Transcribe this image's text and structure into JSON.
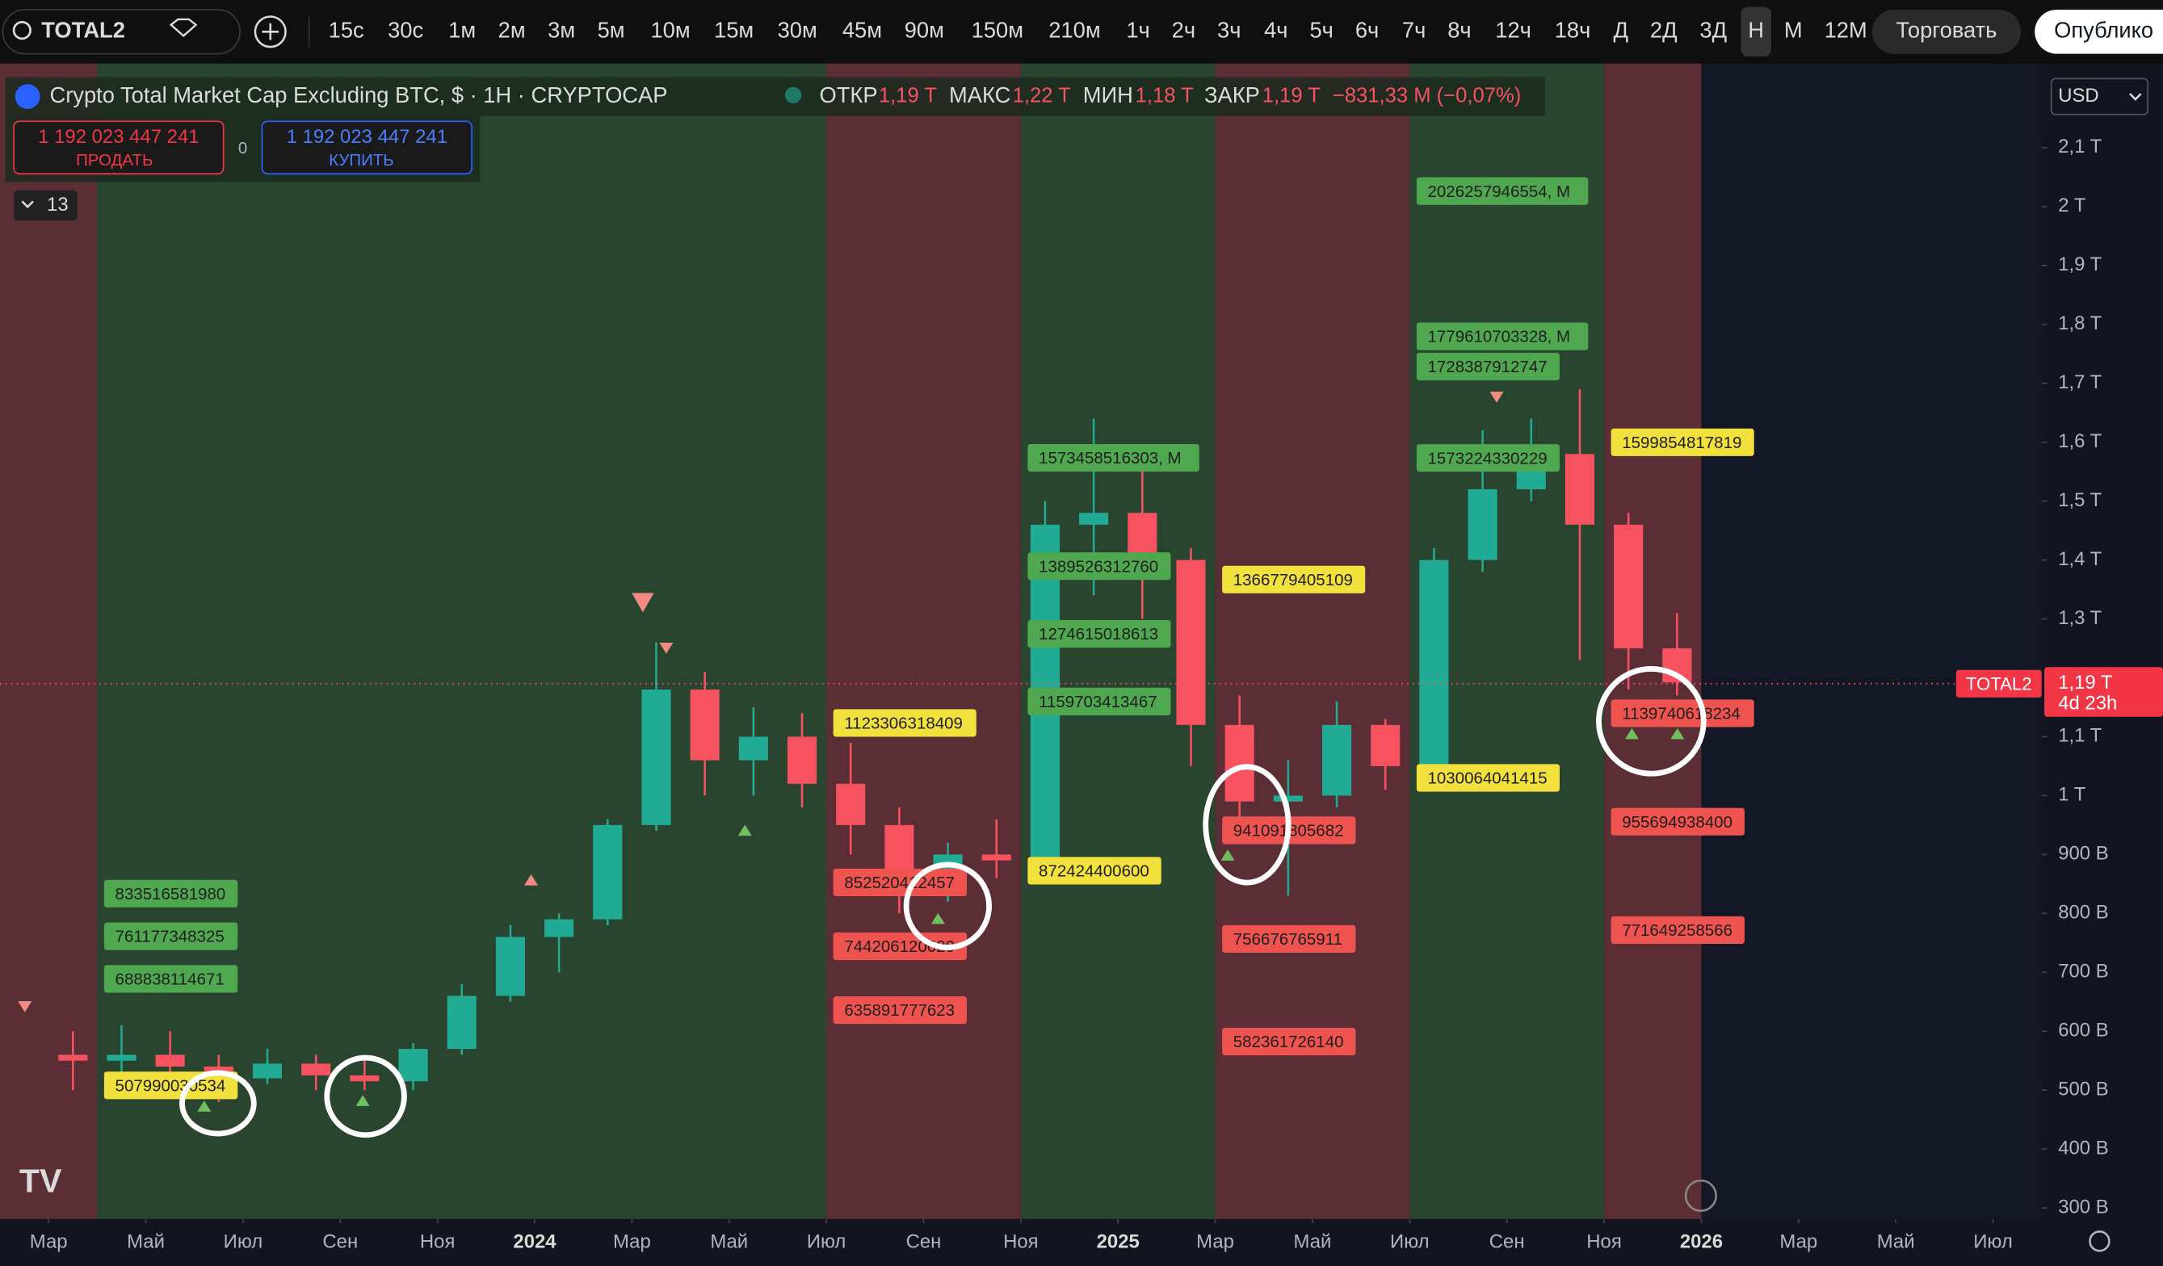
{
  "toolbar": {
    "symbol": "TOTAL2",
    "intervals": [
      "15с",
      "30с",
      "1м",
      "2м",
      "3м",
      "5м",
      "10м",
      "15м",
      "30м",
      "45м",
      "90м",
      "150м",
      "210м",
      "1ч",
      "2ч",
      "3ч",
      "4ч",
      "5ч",
      "6ч",
      "7ч",
      "8ч",
      "12ч",
      "18ч",
      "Д",
      "2Д",
      "3Д",
      "Н",
      "М",
      "12М"
    ],
    "selected_interval": 26,
    "trade": "Торговать",
    "publish": "Опублико"
  },
  "legend": {
    "title": "Crypto Total Market Cap Excluding BTC, $ · 1H · CRYPTOCAP",
    "open_label": "ОТКР",
    "open": "1,19 T",
    "high_label": "МАКС",
    "high": "1,22 T",
    "low_label": "МИН",
    "low": "1,18 T",
    "close_label": "ЗАКР",
    "close": "1,19 T",
    "change": "−831,33 M (−0,07%)"
  },
  "order_panel": {
    "sell_price": "1 192 023 447 241",
    "sell": "ПРОДАТЬ",
    "spread": "0",
    "buy_price": "1 192 023 447 241",
    "buy": "КУПИТЬ"
  },
  "indicators_count": "13",
  "currency": "USD",
  "chart_data": {
    "type": "candlestick",
    "background": "#141826",
    "up_color": "#22ab94",
    "down_color": "#f7525f",
    "x": [
      "2023-03",
      "2023-04",
      "2023-05",
      "2023-06",
      "2023-07",
      "2023-08",
      "2023-09",
      "2023-10",
      "2023-11",
      "2023-12",
      "2024-01",
      "2024-02",
      "2024-03",
      "2024-04",
      "2024-05",
      "2024-06",
      "2024-07",
      "2024-08",
      "2024-09",
      "2024-10",
      "2024-11",
      "2024-12",
      "2025-01",
      "2025-02",
      "2025-03",
      "2025-04",
      "2025-05",
      "2025-06",
      "2025-07",
      "2025-08",
      "2025-09",
      "2025-10",
      "2025-11",
      "2025-12"
    ],
    "open": [
      560000000000.0,
      550000000000.0,
      560000000000.0,
      540000000000.0,
      520000000000.0,
      545000000000.0,
      525000000000.0,
      515000000000.0,
      570000000000.0,
      660000000000.0,
      760000000000.0,
      790000000000.0,
      950000000000.0,
      1180000000000.0,
      1060000000000.0,
      1100000000000.0,
      1020000000000.0,
      950000000000.0,
      840000000000.0,
      900000000000.0,
      890000000000.0,
      1460000000000.0,
      1480000000000.0,
      1400000000000.0,
      1120000000000.0,
      990000000000.0,
      1000000000000.0,
      1120000000000.0,
      1050000000000.0,
      1400000000000.0,
      1520000000000.0,
      1580000000000.0,
      1460000000000.0,
      1250000000000.0
    ],
    "high": [
      600000000000.0,
      610000000000.0,
      600000000000.0,
      560000000000.0,
      570000000000.0,
      560000000000.0,
      550000000000.0,
      580000000000.0,
      680000000000.0,
      780000000000.0,
      800000000000.0,
      960000000000.0,
      1260000000000.0,
      1210000000000.0,
      1150000000000.0,
      1140000000000.0,
      1090000000000.0,
      980000000000.0,
      920000000000.0,
      960000000000.0,
      1500000000000.0,
      1640000000000.0,
      1560000000000.0,
      1420000000000.0,
      1170000000000.0,
      1060000000000.0,
      1160000000000.0,
      1130000000000.0,
      1420000000000.0,
      1620000000000.0,
      1640000000000.0,
      1690000000000.0,
      1480000000000.0,
      1310000000000.0
    ],
    "low": [
      500000000000.0,
      520000000000.0,
      520000000000.0,
      480000000000.0,
      510000000000.0,
      500000000000.0,
      500000000000.0,
      500000000000.0,
      560000000000.0,
      650000000000.0,
      700000000000.0,
      780000000000.0,
      940000000000.0,
      1000000000000.0,
      1000000000000.0,
      980000000000.0,
      900000000000.0,
      800000000000.0,
      820000000000.0,
      860000000000.0,
      880000000000.0,
      1340000000000.0,
      1300000000000.0,
      1050000000000.0,
      960000000000.0,
      830000000000.0,
      980000000000.0,
      1010000000000.0,
      1040000000000.0,
      1380000000000.0,
      1500000000000.0,
      1230000000000.0,
      1180000000000.0,
      1170000000000.0
    ],
    "close": [
      550000000000.0,
      560000000000.0,
      540000000000.0,
      520000000000.0,
      545000000000.0,
      525000000000.0,
      515000000000.0,
      570000000000.0,
      660000000000.0,
      760000000000.0,
      790000000000.0,
      950000000000.0,
      1180000000000.0,
      1060000000000.0,
      1100000000000.0,
      1020000000000.0,
      950000000000.0,
      840000000000.0,
      900000000000.0,
      890000000000.0,
      1460000000000.0,
      1480000000000.0,
      1400000000000.0,
      1120000000000.0,
      990000000000.0,
      1000000000000.0,
      1120000000000.0,
      1050000000000.0,
      1400000000000.0,
      1520000000000.0,
      1580000000000.0,
      1460000000000.0,
      1250000000000.0,
      1192000000000.0
    ],
    "xlim": [
      "2023-02",
      "2026-08"
    ],
    "xticks": [
      {
        "value": "2023-03",
        "label": "Мар"
      },
      {
        "value": "2023-05",
        "label": "Май"
      },
      {
        "value": "2023-07",
        "label": "Июл"
      },
      {
        "value": "2023-09",
        "label": "Сен"
      },
      {
        "value": "2023-11",
        "label": "Ноя"
      },
      {
        "value": "2024-01",
        "label": "2024"
      },
      {
        "value": "2024-03",
        "label": "Мар"
      },
      {
        "value": "2024-05",
        "label": "Май"
      },
      {
        "value": "2024-07",
        "label": "Июл"
      },
      {
        "value": "2024-09",
        "label": "Сен"
      },
      {
        "value": "2024-11",
        "label": "Ноя"
      },
      {
        "value": "2025-01",
        "label": "2025"
      },
      {
        "value": "2025-03",
        "label": "Мар"
      },
      {
        "value": "2025-05",
        "label": "Май"
      },
      {
        "value": "2025-07",
        "label": "Июл"
      },
      {
        "value": "2025-09",
        "label": "Сен"
      },
      {
        "value": "2025-11",
        "label": "Ноя"
      },
      {
        "value": "2026-01",
        "label": "2026"
      },
      {
        "value": "2026-03",
        "label": "Мар"
      },
      {
        "value": "2026-05",
        "label": "Май"
      },
      {
        "value": "2026-07",
        "label": "Июл"
      }
    ],
    "ylim": [
      281000000000.0,
      2243000000000.0
    ],
    "yticks": [
      {
        "value": 2100000000000.0,
        "label": "2,1 T"
      },
      {
        "value": 2000000000000.0,
        "label": "2 T"
      },
      {
        "value": 1900000000000.0,
        "label": "1,9 T"
      },
      {
        "value": 1800000000000.0,
        "label": "1,8 T"
      },
      {
        "value": 1700000000000.0,
        "label": "1,7 T"
      },
      {
        "value": 1600000000000.0,
        "label": "1,6 T"
      },
      {
        "value": 1500000000000.0,
        "label": "1,5 T"
      },
      {
        "value": 1400000000000.0,
        "label": "1,4 T"
      },
      {
        "value": 1300000000000.0,
        "label": "1,3 T"
      },
      {
        "value": 1100000000000.0,
        "label": "1,1 T"
      },
      {
        "value": 1000000000000.0,
        "label": "1 T"
      },
      {
        "value": 900000000000.0,
        "label": "900 B"
      },
      {
        "value": 800000000000.0,
        "label": "800 B"
      },
      {
        "value": 700000000000.0,
        "label": "700 B"
      },
      {
        "value": 600000000000.0,
        "label": "600 B"
      },
      {
        "value": 500000000000.0,
        "label": "500 B"
      },
      {
        "value": 400000000000.0,
        "label": "400 B"
      },
      {
        "value": 300000000000.0,
        "label": "300 B"
      }
    ],
    "last_price": {
      "value": 1190000000000.0,
      "label": "1,19 T"
    },
    "countdown": "4d 23h",
    "zones": [
      {
        "start": "2023-02",
        "end": "2023-04",
        "color": "#5b2d35",
        "levels": []
      },
      {
        "start": "2023-04",
        "end": "2024-07",
        "color": "#29452f",
        "levels": [
          {
            "value": 833516581980,
            "color": "#4fa74f"
          },
          {
            "value": 761177348325,
            "color": "#4fa74f"
          },
          {
            "value": 688838114671,
            "color": "#4fa74f"
          },
          {
            "value": 507990030534,
            "color": "#f2e13c"
          }
        ]
      },
      {
        "start": "2024-07",
        "end": "2024-11",
        "color": "#5b2d35",
        "levels": [
          {
            "value": 1123306318409,
            "color": "#f2e13c"
          },
          {
            "value": 852520412457,
            "color": "#ef5350"
          },
          {
            "value": 744206120020,
            "color": "#ef5350"
          },
          {
            "value": 635891777623,
            "color": "#ef5350"
          }
        ]
      },
      {
        "start": "2024-11",
        "end": "2025-03",
        "color": "#29452f",
        "levels": [
          {
            "value": 1573458516303,
            "label": "1573458516303, M",
            "color": "#4fa74f"
          },
          {
            "value": 1389526312760,
            "color": "#4fa74f"
          },
          {
            "value": 1274615018613,
            "color": "#4fa74f"
          },
          {
            "value": 1159703413467,
            "color": "#4fa74f"
          },
          {
            "value": 872424400600,
            "color": "#f2e13c"
          }
        ]
      },
      {
        "start": "2025-03",
        "end": "2025-07",
        "color": "#5b2d35",
        "levels": [
          {
            "value": 1366779405109,
            "color": "#f2e13c"
          },
          {
            "value": 941091805682,
            "color": "#ef5350"
          },
          {
            "value": 756676765911,
            "color": "#ef5350"
          },
          {
            "value": 582361726140,
            "color": "#ef5350"
          }
        ]
      },
      {
        "start": "2025-07",
        "end": "2025-11",
        "color": "#29452f",
        "levels": [
          {
            "value": 2026257946554,
            "label": "2026257946554, M",
            "color": "#4fa74f"
          },
          {
            "value": 1779610703328,
            "label": "1779610703328, M",
            "color": "#4fa74f"
          },
          {
            "value": 1728387912747,
            "color": "#4fa74f"
          },
          {
            "value": 1573224330229,
            "color": "#4fa74f"
          },
          {
            "value": 1030064041415,
            "color": "#f2e13c"
          }
        ]
      },
      {
        "start": "2025-11",
        "end": "2026-01",
        "color": "#5b2d35",
        "levels": [
          {
            "value": 1599854817819,
            "color": "#f2e13c"
          },
          {
            "value": 1139740618234,
            "color": "#ef5350"
          },
          {
            "value": 955694938400,
            "color": "#ef5350"
          },
          {
            "value": 771649258566,
            "color": "#ef5350"
          }
        ]
      }
    ]
  }
}
